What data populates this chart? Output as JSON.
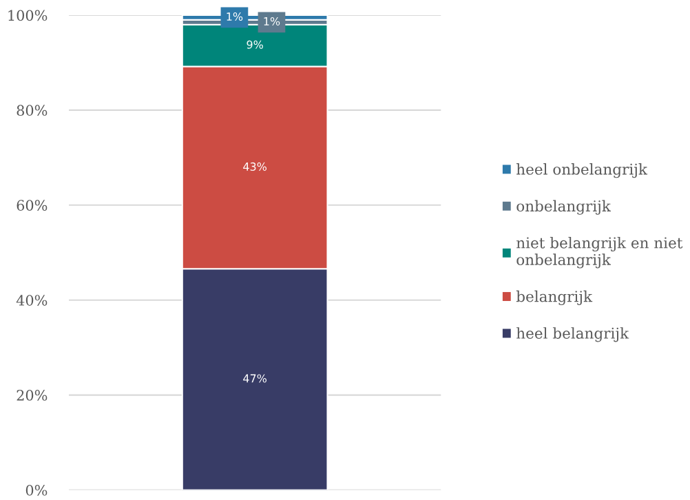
{
  "chart_data": {
    "type": "bar",
    "stacked": true,
    "categories": [
      null
    ],
    "series": [
      {
        "name": "heel belangrijk",
        "color": "#383c66",
        "values": [
          46.6
        ],
        "value_labels": [
          "47%"
        ]
      },
      {
        "name": "belangrijk",
        "color": "#cc4c43",
        "values": [
          42.6
        ],
        "value_labels": [
          "43%"
        ]
      },
      {
        "name": "niet belangrijk en niet onbelangrijk",
        "color": "#00857a",
        "values": [
          8.8
        ],
        "value_labels": [
          "9%"
        ]
      },
      {
        "name": "onbelangrijk",
        "color": "#5e7a8e",
        "values": [
          1.0
        ],
        "value_labels": [
          "1%"
        ]
      },
      {
        "name": "heel onbelangrijk",
        "color": "#2e7aab",
        "values": [
          1.0
        ],
        "value_labels": [
          "1%"
        ]
      }
    ],
    "ylim": [
      0,
      100
    ],
    "yticks": [
      {
        "value": 0,
        "label": "0%"
      },
      {
        "value": 20,
        "label": "20%"
      },
      {
        "value": 40,
        "label": "40%"
      },
      {
        "value": 60,
        "label": "60%"
      },
      {
        "value": 80,
        "label": "80%"
      },
      {
        "value": 100,
        "label": "100%"
      }
    ],
    "grid": "y",
    "legend": "right"
  }
}
